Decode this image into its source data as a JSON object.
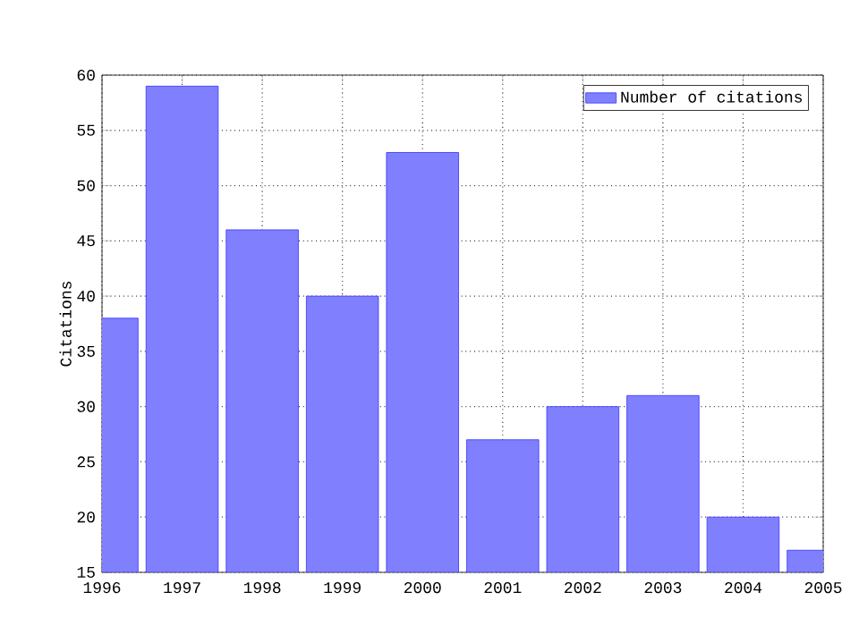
{
  "chart_data": {
    "type": "bar",
    "ylabel": "Citations",
    "x": [
      1996,
      1997,
      1998,
      1999,
      2000,
      2001,
      2002,
      2003,
      2004,
      2005
    ],
    "series": [
      {
        "name": "Number of citations",
        "color": "#8080ff",
        "values": [
          38,
          59,
          46,
          40,
          53,
          27,
          30,
          31,
          20,
          17
        ]
      }
    ],
    "xlim": [
      1996,
      2005
    ],
    "ylim": [
      15,
      60
    ],
    "xticks": [
      1996,
      1997,
      1998,
      1999,
      2000,
      2001,
      2002,
      2003,
      2004,
      2005
    ],
    "yticks": [
      15,
      20,
      25,
      30,
      35,
      40,
      45,
      50,
      55,
      60
    ],
    "grid": true,
    "legend": "top right"
  }
}
